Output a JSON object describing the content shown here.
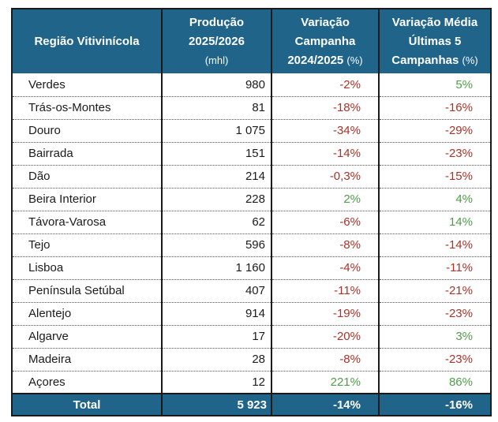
{
  "colors": {
    "header_bg": "#20648A",
    "border": "#1A1A1A",
    "negative": "#A93229",
    "positive": "#4F9D49",
    "header_text": "#FFFFFF",
    "body_text": "#1B1B1B"
  },
  "table": {
    "header": {
      "region": "Região Vitivinícola",
      "production": {
        "line1": "Produção",
        "line2": "2025/2026",
        "unit": "(mhl)"
      },
      "variation_campaign": {
        "line1": "Variação",
        "line2": "Campanha",
        "line3": "2024/2025",
        "unit": "(%)"
      },
      "variation_average": {
        "line1": "Variação Média",
        "line2": "Últimas 5",
        "line3": "Campanhas",
        "unit": "(%)"
      }
    },
    "rows": [
      {
        "region": "Verdes",
        "production": "980",
        "variation_campaign": "-2%",
        "variation_campaign_trend": "negative",
        "variation_average": "5%",
        "variation_average_trend": "positive"
      },
      {
        "region": "Trás-os-Montes",
        "production": "81",
        "variation_campaign": "-18%",
        "variation_campaign_trend": "negative",
        "variation_average": "-16%",
        "variation_average_trend": "negative"
      },
      {
        "region": "Douro",
        "production": "1 075",
        "variation_campaign": "-34%",
        "variation_campaign_trend": "negative",
        "variation_average": "-29%",
        "variation_average_trend": "negative"
      },
      {
        "region": "Bairrada",
        "production": "151",
        "variation_campaign": "-14%",
        "variation_campaign_trend": "negative",
        "variation_average": "-23%",
        "variation_average_trend": "negative"
      },
      {
        "region": "Dão",
        "production": "214",
        "variation_campaign": "-0,3%",
        "variation_campaign_trend": "negative",
        "variation_average": "-15%",
        "variation_average_trend": "negative"
      },
      {
        "region": "Beira Interior",
        "production": "228",
        "variation_campaign": "2%",
        "variation_campaign_trend": "positive",
        "variation_average": "4%",
        "variation_average_trend": "positive"
      },
      {
        "region": "Távora-Varosa",
        "production": "62",
        "variation_campaign": "-6%",
        "variation_campaign_trend": "negative",
        "variation_average": "14%",
        "variation_average_trend": "positive"
      },
      {
        "region": "Tejo",
        "production": "596",
        "variation_campaign": "-8%",
        "variation_campaign_trend": "negative",
        "variation_average": "-14%",
        "variation_average_trend": "negative"
      },
      {
        "region": "Lisboa",
        "production": "1 160",
        "variation_campaign": "-4%",
        "variation_campaign_trend": "negative",
        "variation_average": "-11%",
        "variation_average_trend": "negative"
      },
      {
        "region": "Península Setúbal",
        "production": "407",
        "variation_campaign": "-11%",
        "variation_campaign_trend": "negative",
        "variation_average": "-21%",
        "variation_average_trend": "negative"
      },
      {
        "region": "Alentejo",
        "production": "914",
        "variation_campaign": "-19%",
        "variation_campaign_trend": "negative",
        "variation_average": "-23%",
        "variation_average_trend": "negative"
      },
      {
        "region": "Algarve",
        "production": "17",
        "variation_campaign": "-20%",
        "variation_campaign_trend": "negative",
        "variation_average": "3%",
        "variation_average_trend": "positive"
      },
      {
        "region": "Madeira",
        "production": "28",
        "variation_campaign": "-8%",
        "variation_campaign_trend": "negative",
        "variation_average": "-23%",
        "variation_average_trend": "negative"
      },
      {
        "region": "Açores",
        "production": "12",
        "variation_campaign": "221%",
        "variation_campaign_trend": "positive",
        "variation_average": "86%",
        "variation_average_trend": "positive"
      }
    ],
    "total": {
      "label": "Total",
      "production": "5 923",
      "variation_campaign": "-14%",
      "variation_average": "-16%"
    }
  },
  "chart_data": {
    "type": "table",
    "title": "",
    "columns": [
      "Região Vitivinícola",
      "Produção 2025/2026 (mhl)",
      "Variação Campanha 2024/2025 (%)",
      "Variação Média Últimas 5 Campanhas (%)"
    ],
    "rows": [
      [
        "Verdes",
        980,
        -2,
        5
      ],
      [
        "Trás-os-Montes",
        81,
        -18,
        -16
      ],
      [
        "Douro",
        1075,
        -34,
        -29
      ],
      [
        "Bairrada",
        151,
        -14,
        -23
      ],
      [
        "Dão",
        214,
        -0.3,
        -15
      ],
      [
        "Beira Interior",
        228,
        2,
        4
      ],
      [
        "Távora-Varosa",
        62,
        -6,
        14
      ],
      [
        "Tejo",
        596,
        -8,
        -14
      ],
      [
        "Lisboa",
        1160,
        -4,
        -11
      ],
      [
        "Península Setúbal",
        407,
        -11,
        -21
      ],
      [
        "Alentejo",
        914,
        -19,
        -23
      ],
      [
        "Algarve",
        17,
        -20,
        3
      ],
      [
        "Madeira",
        28,
        -8,
        -23
      ],
      [
        "Açores",
        12,
        221,
        86
      ]
    ],
    "total_row": [
      "Total",
      5923,
      -14,
      -16
    ],
    "value_color_rule": "percentage values: negative shown in dark red, positive shown in green; total row white on teal"
  }
}
